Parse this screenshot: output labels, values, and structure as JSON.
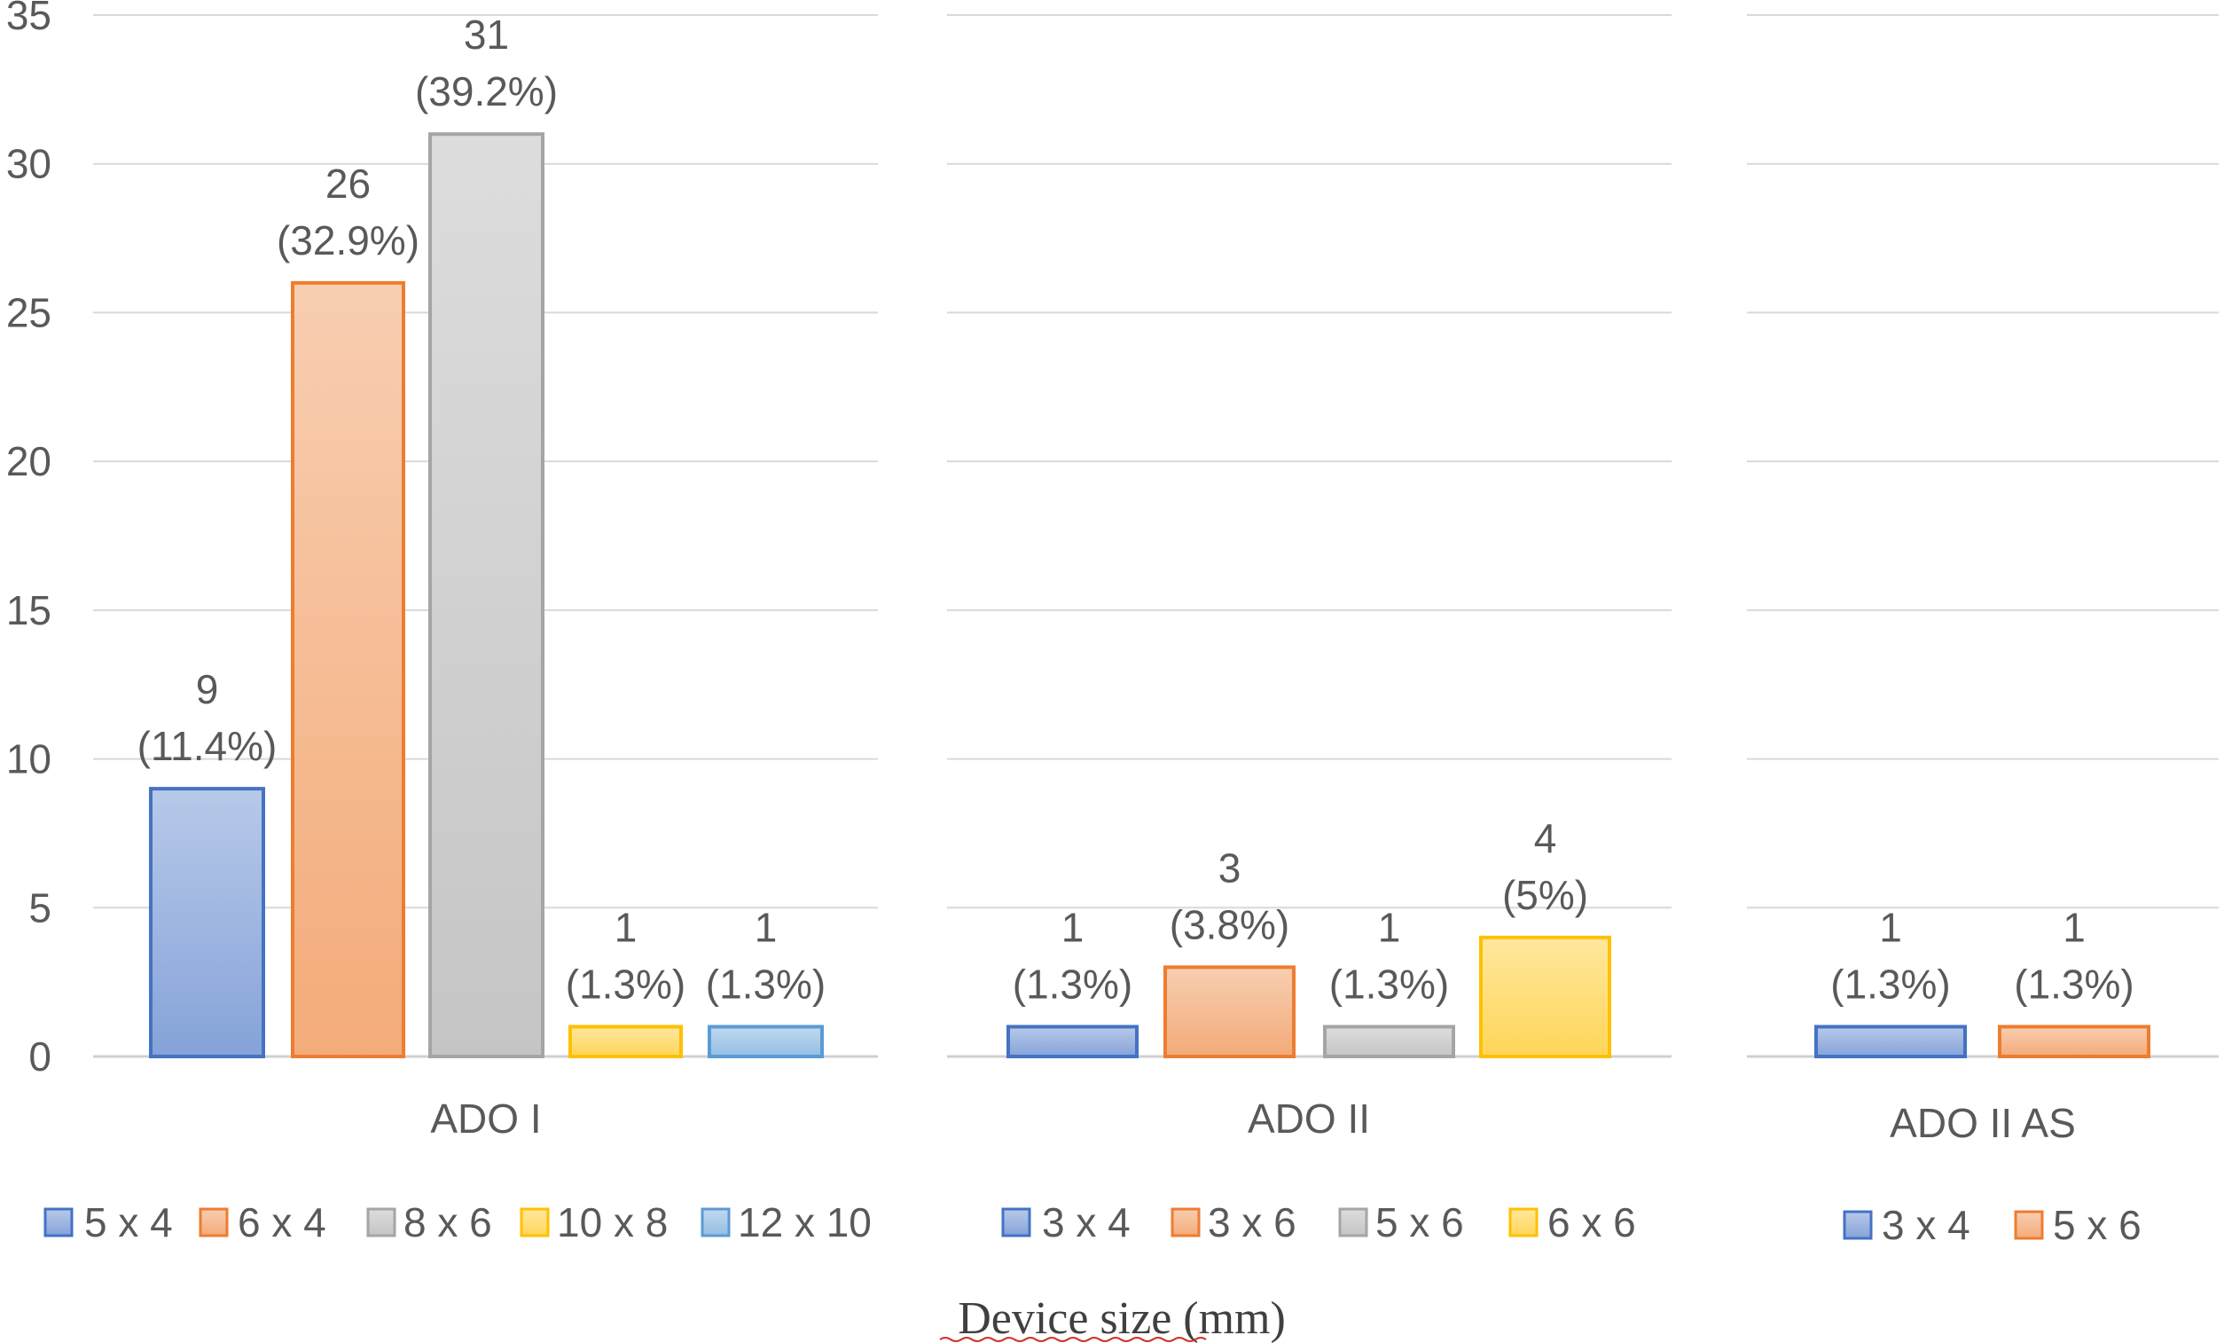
{
  "chart_data": {
    "type": "bar",
    "ylim": [
      0,
      35
    ],
    "yticks": [
      0,
      5,
      10,
      15,
      20,
      25,
      30,
      35
    ],
    "grid": true,
    "x_title": "Device size (mm)",
    "legend_position": "bottom",
    "colors": {
      "blue": "#4472C4",
      "orange": "#ED7D31",
      "gray": "#A5A5A5",
      "yellow": "#FFC000",
      "lightblue": "#5B9BD5"
    },
    "panels": [
      {
        "category": "ADO I",
        "series": [
          {
            "name": "5 x 4",
            "value": 9,
            "label_count": "9",
            "label_pct": "(11.4%)",
            "color": "#4472C4"
          },
          {
            "name": "6 x 4",
            "value": 26,
            "label_count": "26",
            "label_pct": "(32.9%)",
            "color": "#ED7D31"
          },
          {
            "name": "8 x 6",
            "value": 31,
            "label_count": "31",
            "label_pct": "(39.2%)",
            "color": "#A5A5A5"
          },
          {
            "name": "10 x 8",
            "value": 1,
            "label_count": "1",
            "label_pct": "(1.3%)",
            "color": "#FFC000"
          },
          {
            "name": "12 x 10",
            "value": 1,
            "label_count": "1",
            "label_pct": "(1.3%)",
            "color": "#5B9BD5"
          }
        ]
      },
      {
        "category": "ADO II",
        "series": [
          {
            "name": "3 x 4",
            "value": 1,
            "label_count": "1",
            "label_pct": "(1.3%)",
            "color": "#4472C4"
          },
          {
            "name": "3 x 6",
            "value": 3,
            "label_count": "3",
            "label_pct": "(3.8%)",
            "color": "#ED7D31"
          },
          {
            "name": "5 x 6",
            "value": 1,
            "label_count": "1",
            "label_pct": "(1.3%)",
            "color": "#A5A5A5"
          },
          {
            "name": "6 x 6",
            "value": 4,
            "label_count": "4",
            "label_pct": "(5%)",
            "color": "#FFC000"
          }
        ]
      },
      {
        "category": "ADO II AS",
        "series": [
          {
            "name": "3 x 4",
            "value": 1,
            "label_count": "1",
            "label_pct": "(1.3%)",
            "color": "#4472C4"
          },
          {
            "name": "5 x 6",
            "value": 1,
            "label_count": "1",
            "label_pct": "(1.3%)",
            "color": "#ED7D31"
          }
        ]
      }
    ]
  }
}
